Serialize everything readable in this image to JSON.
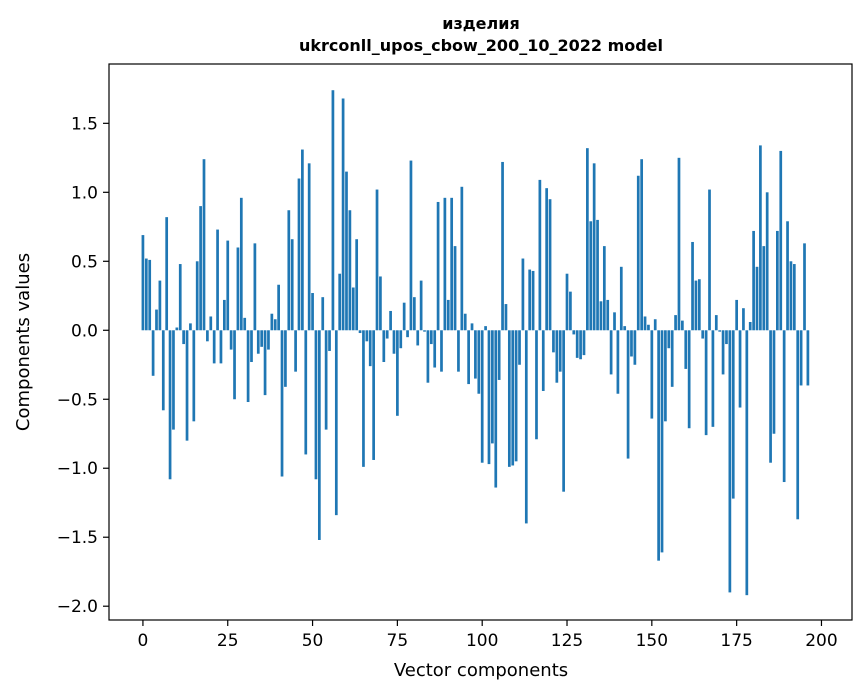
{
  "chart_data": {
    "type": "bar",
    "title_line1": "изделия",
    "title_line2": "ukrconll_upos_cbow_200_10_2022 model",
    "xlabel": "Vector components",
    "ylabel": "Components values",
    "xlim": [
      -10,
      209
    ],
    "ylim": [
      -2.1,
      1.93
    ],
    "x_ticks": [
      0,
      25,
      50,
      75,
      100,
      125,
      150,
      175,
      200
    ],
    "x_tick_labels": [
      "0",
      "25",
      "50",
      "75",
      "100",
      "125",
      "150",
      "175",
      "200"
    ],
    "y_ticks": [
      -2.0,
      -1.5,
      -1.0,
      -0.5,
      0.0,
      0.5,
      1.0,
      1.5
    ],
    "y_tick_labels": [
      "−2.0",
      "−1.5",
      "−1.0",
      "−0.5",
      "0.0",
      "0.5",
      "1.0",
      "1.5"
    ],
    "bar_color": "#1f77b4",
    "values": [
      0.69,
      0.52,
      0.51,
      -0.33,
      0.15,
      0.36,
      -0.58,
      0.82,
      -1.08,
      -0.72,
      0.02,
      0.48,
      -0.1,
      -0.8,
      0.05,
      -0.66,
      0.5,
      0.9,
      1.24,
      -0.08,
      0.1,
      -0.24,
      0.73,
      -0.24,
      0.22,
      0.65,
      -0.14,
      -0.5,
      0.6,
      0.96,
      0.09,
      -0.52,
      -0.23,
      0.63,
      -0.17,
      -0.12,
      -0.47,
      -0.14,
      0.12,
      0.08,
      0.33,
      -1.06,
      -0.41,
      0.87,
      0.66,
      -0.3,
      1.1,
      1.31,
      -0.9,
      1.21,
      0.27,
      -1.08,
      -1.52,
      0.24,
      -0.72,
      -0.15,
      1.74,
      -1.34,
      0.41,
      1.68,
      1.15,
      0.87,
      0.31,
      0.66,
      -0.02,
      -0.99,
      -0.08,
      -0.26,
      -0.94,
      1.02,
      0.39,
      -0.23,
      -0.06,
      0.14,
      -0.17,
      -0.62,
      -0.13,
      0.2,
      -0.05,
      1.23,
      0.24,
      -0.11,
      0.36,
      -0.01,
      -0.38,
      -0.1,
      -0.27,
      0.93,
      -0.3,
      0.96,
      0.22,
      0.96,
      0.61,
      -0.3,
      1.04,
      0.12,
      -0.39,
      0.05,
      -0.35,
      -0.46,
      -0.96,
      0.03,
      -0.97,
      -0.82,
      -1.14,
      -0.36,
      1.22,
      0.19,
      -0.99,
      -0.98,
      -0.95,
      -0.25,
      0.52,
      -1.4,
      0.44,
      0.43,
      -0.79,
      1.09,
      -0.44,
      1.03,
      0.95,
      -0.16,
      -0.38,
      -0.3,
      -1.17,
      0.41,
      0.28,
      -0.03,
      -0.2,
      -0.21,
      -0.18,
      1.32,
      0.79,
      1.21,
      0.8,
      0.21,
      0.61,
      0.22,
      -0.32,
      0.13,
      -0.46,
      0.46,
      0.03,
      -0.93,
      -0.19,
      -0.25,
      1.12,
      1.24,
      0.1,
      0.04,
      -0.64,
      0.08,
      -1.67,
      -1.61,
      -0.66,
      -0.13,
      -0.41,
      0.11,
      1.25,
      0.07,
      -0.28,
      -0.71,
      0.64,
      0.36,
      0.37,
      -0.06,
      -0.76,
      1.02,
      -0.7,
      0.11,
      -0.01,
      -0.32,
      -0.1,
      -1.9,
      -1.22,
      0.22,
      -0.56,
      0.16,
      -1.92,
      0.06,
      0.72,
      0.46,
      1.34,
      0.61,
      1.0,
      -0.96,
      -0.75,
      0.72,
      1.3,
      -1.1,
      0.79,
      0.5,
      0.48,
      -1.37,
      -0.4,
      0.63,
      -0.4
    ]
  }
}
